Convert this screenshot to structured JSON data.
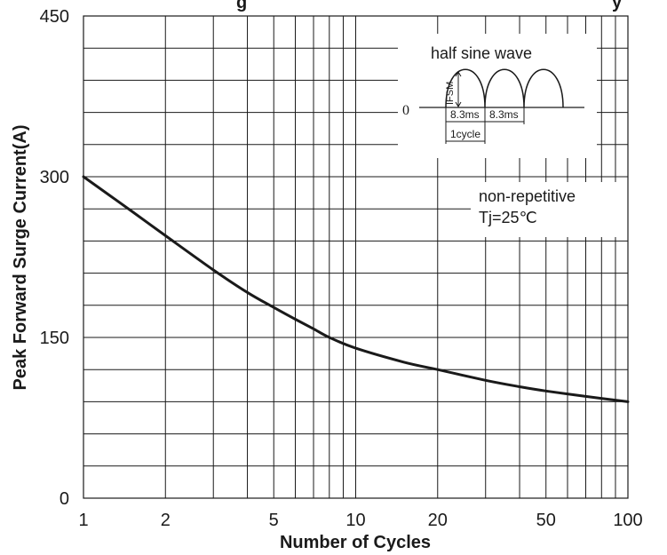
{
  "chart_data": {
    "type": "line",
    "title_fragment": "g",
    "title_fragment_tail": "y",
    "xlabel": "Number of Cycles",
    "ylabel": "Peak Forward Surge Current(A)",
    "x_scale": "log",
    "xlim": [
      1,
      100
    ],
    "ylim": [
      0,
      450
    ],
    "x_ticks": [
      1,
      2,
      5,
      10,
      20,
      50,
      100
    ],
    "x_tick_labels": [
      "1",
      "2",
      "5",
      "10",
      "20",
      "50",
      "100"
    ],
    "y_ticks": [
      0,
      150,
      300,
      450
    ],
    "y_tick_labels": [
      "0",
      "150",
      "300",
      "450"
    ],
    "grid": true,
    "series": [
      {
        "x": [
          1,
          1.5,
          2,
          3,
          4,
          5,
          6,
          7,
          8,
          10,
          15,
          20,
          30,
          40,
          50,
          70,
          100
        ],
        "y": [
          300,
          268,
          245,
          213,
          192,
          178,
          167,
          158,
          150,
          140,
          127,
          120,
          110,
          104,
          100,
          95,
          90
        ]
      }
    ],
    "annotations": {
      "waveform_title": "half sine wave",
      "ifsm_label": "IFSM",
      "zero_label": "0",
      "period_label_1": "8.3ms",
      "period_label_2": "8.3ms",
      "cycle_label": "1cycle",
      "condition_1": "non-repetitive",
      "condition_2": "Tj=25℃"
    },
    "line_color": "#1a1a1a",
    "grid_color": "#1a1a1a"
  }
}
